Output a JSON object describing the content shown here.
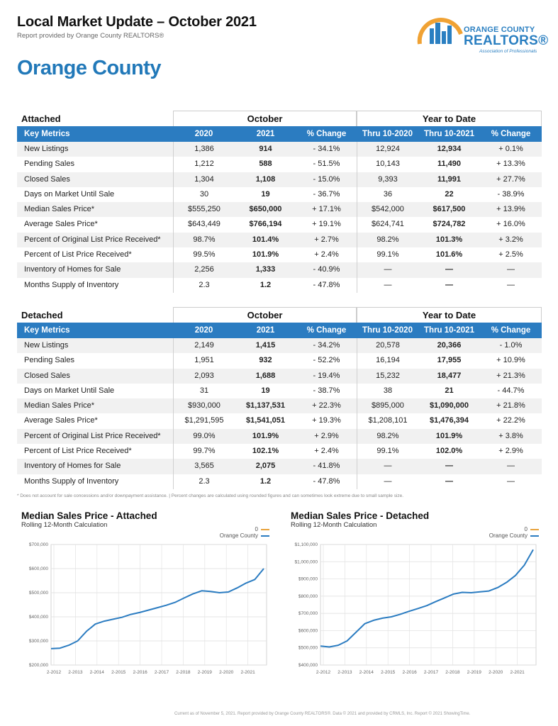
{
  "header": {
    "title": "Local Market Update – October 2021",
    "subtitle": "Report provided by Orange County REALTORS®",
    "county": "Orange County"
  },
  "logo": {
    "line1": "ORANGE COUNTY",
    "line2": "REALTORS®",
    "line3": "Association of Professionals"
  },
  "tables": {
    "attached": {
      "section": "Attached",
      "group_october": "October",
      "group_ytd": "Year to Date",
      "headers": [
        "Key Metrics",
        "2020",
        "2021",
        "% Change",
        "Thru 10-2020",
        "Thru 10-2021",
        "% Change"
      ],
      "rows": [
        [
          "New Listings",
          "1,386",
          "914",
          "- 34.1%",
          "12,924",
          "12,934",
          "+ 0.1%"
        ],
        [
          "Pending Sales",
          "1,212",
          "588",
          "- 51.5%",
          "10,143",
          "11,490",
          "+ 13.3%"
        ],
        [
          "Closed Sales",
          "1,304",
          "1,108",
          "- 15.0%",
          "9,393",
          "11,991",
          "+ 27.7%"
        ],
        [
          "Days on Market Until Sale",
          "30",
          "19",
          "- 36.7%",
          "36",
          "22",
          "- 38.9%"
        ],
        [
          "Median Sales Price*",
          "$555,250",
          "$650,000",
          "+ 17.1%",
          "$542,000",
          "$617,500",
          "+ 13.9%"
        ],
        [
          "Average Sales Price*",
          "$643,449",
          "$766,194",
          "+ 19.1%",
          "$624,741",
          "$724,782",
          "+ 16.0%"
        ],
        [
          "Percent of Original List Price Received*",
          "98.7%",
          "101.4%",
          "+ 2.7%",
          "98.2%",
          "101.3%",
          "+ 3.2%"
        ],
        [
          "Percent of List Price Received*",
          "99.5%",
          "101.9%",
          "+ 2.4%",
          "99.1%",
          "101.6%",
          "+ 2.5%"
        ],
        [
          "Inventory of Homes for Sale",
          "2,256",
          "1,333",
          "- 40.9%",
          "—",
          "—",
          "—"
        ],
        [
          "Months Supply of Inventory",
          "2.3",
          "1.2",
          "- 47.8%",
          "—",
          "—",
          "—"
        ]
      ]
    },
    "detached": {
      "section": "Detached",
      "group_october": "October",
      "group_ytd": "Year to Date",
      "headers": [
        "Key Metrics",
        "2020",
        "2021",
        "% Change",
        "Thru 10-2020",
        "Thru 10-2021",
        "% Change"
      ],
      "rows": [
        [
          "New Listings",
          "2,149",
          "1,415",
          "- 34.2%",
          "20,578",
          "20,366",
          "- 1.0%"
        ],
        [
          "Pending Sales",
          "1,951",
          "932",
          "- 52.2%",
          "16,194",
          "17,955",
          "+ 10.9%"
        ],
        [
          "Closed Sales",
          "2,093",
          "1,688",
          "- 19.4%",
          "15,232",
          "18,477",
          "+ 21.3%"
        ],
        [
          "Days on Market Until Sale",
          "31",
          "19",
          "- 38.7%",
          "38",
          "21",
          "- 44.7%"
        ],
        [
          "Median Sales Price*",
          "$930,000",
          "$1,137,531",
          "+ 22.3%",
          "$895,000",
          "$1,090,000",
          "+ 21.8%"
        ],
        [
          "Average Sales Price*",
          "$1,291,595",
          "$1,541,051",
          "+ 19.3%",
          "$1,208,101",
          "$1,476,394",
          "+ 22.2%"
        ],
        [
          "Percent of Original List Price Received*",
          "99.0%",
          "101.9%",
          "+ 2.9%",
          "98.2%",
          "101.9%",
          "+ 3.8%"
        ],
        [
          "Percent of List Price Received*",
          "99.7%",
          "102.1%",
          "+ 2.4%",
          "99.1%",
          "102.0%",
          "+ 2.9%"
        ],
        [
          "Inventory of Homes for Sale",
          "3,565",
          "2,075",
          "- 41.8%",
          "—",
          "—",
          "—"
        ],
        [
          "Months Supply of Inventory",
          "2.3",
          "1.2",
          "- 47.8%",
          "—",
          "—",
          "—"
        ]
      ]
    }
  },
  "footnote": "* Does not account for sale concessions and/or downpayment assistance.  |  Percent changes are calculated using rounded figures and can sometimes look extreme due to small sample size.",
  "source": "Current as of November 5, 2021. Report provided by Orange County REALTORS®. Data © 2021 and provided by CRMLS, Inc. Report © 2021 ShowingTime.",
  "colors": {
    "accent": "#2b7cc1",
    "line": "#2b7cc1",
    "legend_zero": "#e8a33c"
  },
  "chart_data": [
    {
      "type": "line",
      "title": "Median Sales Price - Attached",
      "subtitle": "Rolling 12-Month Calculation",
      "legend": [
        "0",
        "Orange County"
      ],
      "x_ticks": [
        "2-2012",
        "2-2013",
        "2-2014",
        "2-2015",
        "2-2016",
        "2-2017",
        "2-2018",
        "2-2019",
        "2-2020",
        "2-2021"
      ],
      "y_ticks": [
        "$200,000",
        "$300,000",
        "$400,000",
        "$500,000",
        "$600,000",
        "$700,000"
      ],
      "ylim": [
        200000,
        700000
      ],
      "series": [
        {
          "name": "Orange County",
          "values": [
            268000,
            270000,
            282000,
            300000,
            340000,
            370000,
            382000,
            390000,
            398000,
            410000,
            418000,
            428000,
            438000,
            448000,
            460000,
            478000,
            495000,
            508000,
            505000,
            500000,
            503000,
            520000,
            540000,
            555000,
            600000
          ]
        }
      ]
    },
    {
      "type": "line",
      "title": "Median Sales Price - Detached",
      "subtitle": "Rolling 12-Month Calculation",
      "legend": [
        "0",
        "Orange County"
      ],
      "x_ticks": [
        "2-2012",
        "2-2013",
        "2-2014",
        "2-2015",
        "2-2016",
        "2-2017",
        "2-2018",
        "2-2019",
        "2-2020",
        "2-2021"
      ],
      "y_ticks": [
        "$400,000",
        "$500,000",
        "$600,000",
        "$700,000",
        "$800,000",
        "$900,000",
        "$1,000,000",
        "$1,100,000"
      ],
      "ylim": [
        400000,
        1100000
      ],
      "series": [
        {
          "name": "Orange County",
          "values": [
            510000,
            505000,
            515000,
            540000,
            590000,
            640000,
            660000,
            672000,
            680000,
            695000,
            712000,
            728000,
            745000,
            768000,
            790000,
            812000,
            822000,
            820000,
            825000,
            830000,
            850000,
            880000,
            920000,
            980000,
            1070000
          ]
        }
      ]
    }
  ]
}
